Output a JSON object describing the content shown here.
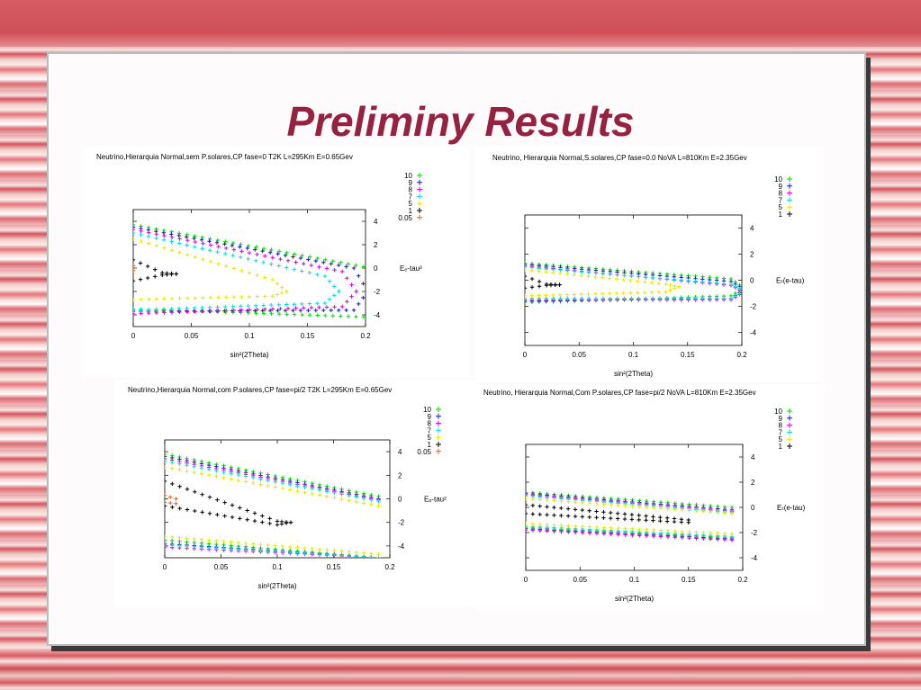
{
  "slide": {
    "title": "Preliminy Results"
  },
  "chart_data": [
    {
      "type": "scatter",
      "title": "Neutrino,Hierarquia Normal,sem P.solares,CP fase=0 T2K L=295Km E=0.65Gev",
      "xlabel": "sin²(2Theta)",
      "ylabel": "Eₑ-tau²",
      "xlim": [
        0,
        0.2
      ],
      "ylim": [
        -5,
        5
      ],
      "xticks": [
        "0",
        "0.05",
        "0.1",
        "0.15",
        "0.2"
      ],
      "yticks": [
        "4",
        "2",
        "0",
        "-2",
        "-4"
      ],
      "legend_position": "top-right",
      "series": [
        {
          "name": "10",
          "color": "#00dd00",
          "xmax": 0.205,
          "top_start": 3.7,
          "top_end": 0.0,
          "bot_start": -3.5,
          "bot_end": -4.2,
          "tip": -2.0
        },
        {
          "name": "9",
          "color": "#1a1ab0",
          "xmax": 0.19,
          "top_start": 3.5,
          "top_end": 0.0,
          "bot_start": -3.7,
          "bot_end": -3.6,
          "tip": -2.0
        },
        {
          "name": "8",
          "color": "#dd00dd",
          "xmax": 0.18,
          "top_start": 3.3,
          "top_end": -0.3,
          "bot_start": -3.9,
          "bot_end": -3.3,
          "tip": -2.0
        },
        {
          "name": "7",
          "color": "#00dddd",
          "xmax": 0.165,
          "top_start": 3.0,
          "top_end": -0.7,
          "bot_start": -3.6,
          "bot_end": -3.0,
          "tip": -2.0
        },
        {
          "name": "5",
          "color": "#e8e800",
          "xmax": 0.12,
          "top_start": 2.5,
          "top_end": -1.0,
          "bot_start": -2.7,
          "bot_end": -2.4,
          "tip": -2.0
        },
        {
          "name": "1",
          "color": "#000000",
          "xmax": 0.025,
          "top_start": 0.7,
          "top_end": -0.4,
          "bot_start": -1.1,
          "bot_end": -0.6,
          "tip": -0.5
        },
        {
          "name": "0.05",
          "color": "#e86020",
          "xmax": 0.0,
          "top_start": 0.2,
          "top_end": 0.2,
          "bot_start": -0.2,
          "bot_end": -0.2,
          "tip": 0.0
        }
      ]
    },
    {
      "type": "scatter",
      "title": "Neutrino, Hierarquia Normal,S.solares,CP fase=0.0 NoVA L=810Km E=2.35Gev",
      "xlabel": "sin²(2Theta)",
      "ylabel": "Eₜ(e-tau)",
      "xlim": [
        0,
        0.2
      ],
      "ylim": [
        -5,
        5
      ],
      "xticks": [
        "0",
        "0.05",
        "0.1",
        "0.15",
        "0.2"
      ],
      "yticks": [
        "4",
        "2",
        "0",
        "-2",
        "-4"
      ],
      "legend_position": "top-right",
      "series": [
        {
          "name": "10",
          "color": "#00dd00",
          "xmax": 0.19,
          "top_start": 1.3,
          "top_end": 0.1,
          "bot_start": -1.7,
          "bot_end": -1.2,
          "tip": -0.6
        },
        {
          "name": "9",
          "color": "#1a1ab0",
          "xmax": 0.19,
          "top_start": 1.2,
          "top_end": -0.1,
          "bot_start": -1.6,
          "bot_end": -1.4,
          "tip": -0.7
        },
        {
          "name": "8",
          "color": "#dd00dd",
          "xmax": 0.19,
          "top_start": 1.1,
          "top_end": -0.4,
          "bot_start": -1.5,
          "bot_end": -1.5,
          "tip": -0.9
        },
        {
          "name": "7",
          "color": "#00dddd",
          "xmax": 0.19,
          "top_start": 1.0,
          "top_end": -0.3,
          "bot_start": -1.4,
          "bot_end": -1.4,
          "tip": -0.8
        },
        {
          "name": "5",
          "color": "#e8e800",
          "xmax": 0.13,
          "top_start": 0.8,
          "top_end": -0.3,
          "bot_start": -1.2,
          "bot_end": -0.9,
          "tip": -0.5
        },
        {
          "name": "1",
          "color": "#000000",
          "xmax": 0.02,
          "top_start": 0.3,
          "top_end": -0.3,
          "bot_start": -0.6,
          "bot_end": -0.4,
          "tip": -0.35
        }
      ]
    },
    {
      "type": "scatter",
      "title": "Neutrino,Hierarquia Normal,com P.solares,CP fase=pi/2 T2K L=295Km E=0.65Gev",
      "xlabel": "sin²(2Theta)",
      "ylabel": "Eₑ-tau²",
      "xlim": [
        0,
        0.2
      ],
      "ylim": [
        -5,
        5
      ],
      "xticks": [
        "0",
        "0.05",
        "0.1",
        "0.15",
        "0.2"
      ],
      "yticks": [
        "4",
        "2",
        "0",
        "-2",
        "-4"
      ],
      "legend_position": "top-right",
      "series": [
        {
          "name": "10",
          "color": "#00dd00",
          "xmax": 0.19,
          "top_start": 3.8,
          "top_end": 0.2,
          "bot_start": -3.5,
          "bot_end": -5.0,
          "tip": null
        },
        {
          "name": "9",
          "color": "#1a1ab0",
          "xmax": 0.19,
          "top_start": 3.6,
          "top_end": 0.0,
          "bot_start": -3.8,
          "bot_end": -5.0,
          "tip": null
        },
        {
          "name": "8",
          "color": "#dd00dd",
          "xmax": 0.19,
          "top_start": 3.4,
          "top_end": -0.1,
          "bot_start": -4.1,
          "bot_end": -5.0,
          "tip": null
        },
        {
          "name": "7",
          "color": "#00dddd",
          "xmax": 0.19,
          "top_start": 3.2,
          "top_end": -0.2,
          "bot_start": -3.9,
          "bot_end": -5.0,
          "tip": null
        },
        {
          "name": "5",
          "color": "#e8e800",
          "xmax": 0.19,
          "top_start": 2.7,
          "top_end": -0.6,
          "bot_start": -3.2,
          "bot_end": -4.7,
          "tip": null
        },
        {
          "name": "1",
          "color": "#000000",
          "xmax": 0.1,
          "top_start": 1.5,
          "top_end": -1.9,
          "bot_start": -0.6,
          "bot_end": -2.2,
          "tip": -2.0
        },
        {
          "name": "0.05",
          "color": "#e86020",
          "xmax": 0.01,
          "top_start": 0.3,
          "top_end": 0.0,
          "bot_start": -0.3,
          "bot_end": -0.4,
          "tip": null
        }
      ]
    },
    {
      "type": "scatter",
      "title": "Neutrino, Hierarquia Normal,Com P.solares,CP fase=pi/2 NoVA L=810Km E=2.35Gev",
      "xlabel": "sin²(2Theta)",
      "ylabel": "Eₜ(e-tau)",
      "xlim": [
        0,
        0.2
      ],
      "ylim": [
        -5,
        5
      ],
      "xticks": [
        "0",
        "0.05",
        "0.1",
        "0.15",
        "0.2"
      ],
      "yticks": [
        "4",
        "2",
        "0",
        "-2",
        "-4"
      ],
      "legend_position": "top-right",
      "series": [
        {
          "name": "10",
          "color": "#00dd00",
          "xmax": 0.19,
          "top_start": 1.2,
          "top_end": 0.0,
          "bot_start": -1.6,
          "bot_end": -2.4,
          "tip": null
        },
        {
          "name": "9",
          "color": "#1a1ab0",
          "xmax": 0.19,
          "top_start": 1.1,
          "top_end": -0.2,
          "bot_start": -1.7,
          "bot_end": -2.5,
          "tip": null
        },
        {
          "name": "8",
          "color": "#dd00dd",
          "xmax": 0.19,
          "top_start": 1.0,
          "top_end": -0.3,
          "bot_start": -1.8,
          "bot_end": -2.6,
          "tip": null
        },
        {
          "name": "7",
          "color": "#00dddd",
          "xmax": 0.19,
          "top_start": 0.9,
          "top_end": -0.4,
          "bot_start": -1.5,
          "bot_end": -2.3,
          "tip": null
        },
        {
          "name": "5",
          "color": "#e8e800",
          "xmax": 0.19,
          "top_start": 0.7,
          "top_end": -0.5,
          "bot_start": -1.3,
          "bot_end": -2.1,
          "tip": null
        },
        {
          "name": "1",
          "color": "#000000",
          "xmax": 0.15,
          "top_start": 0.2,
          "top_end": -1.0,
          "bot_start": -0.5,
          "bot_end": -1.2,
          "tip": null
        }
      ]
    }
  ]
}
